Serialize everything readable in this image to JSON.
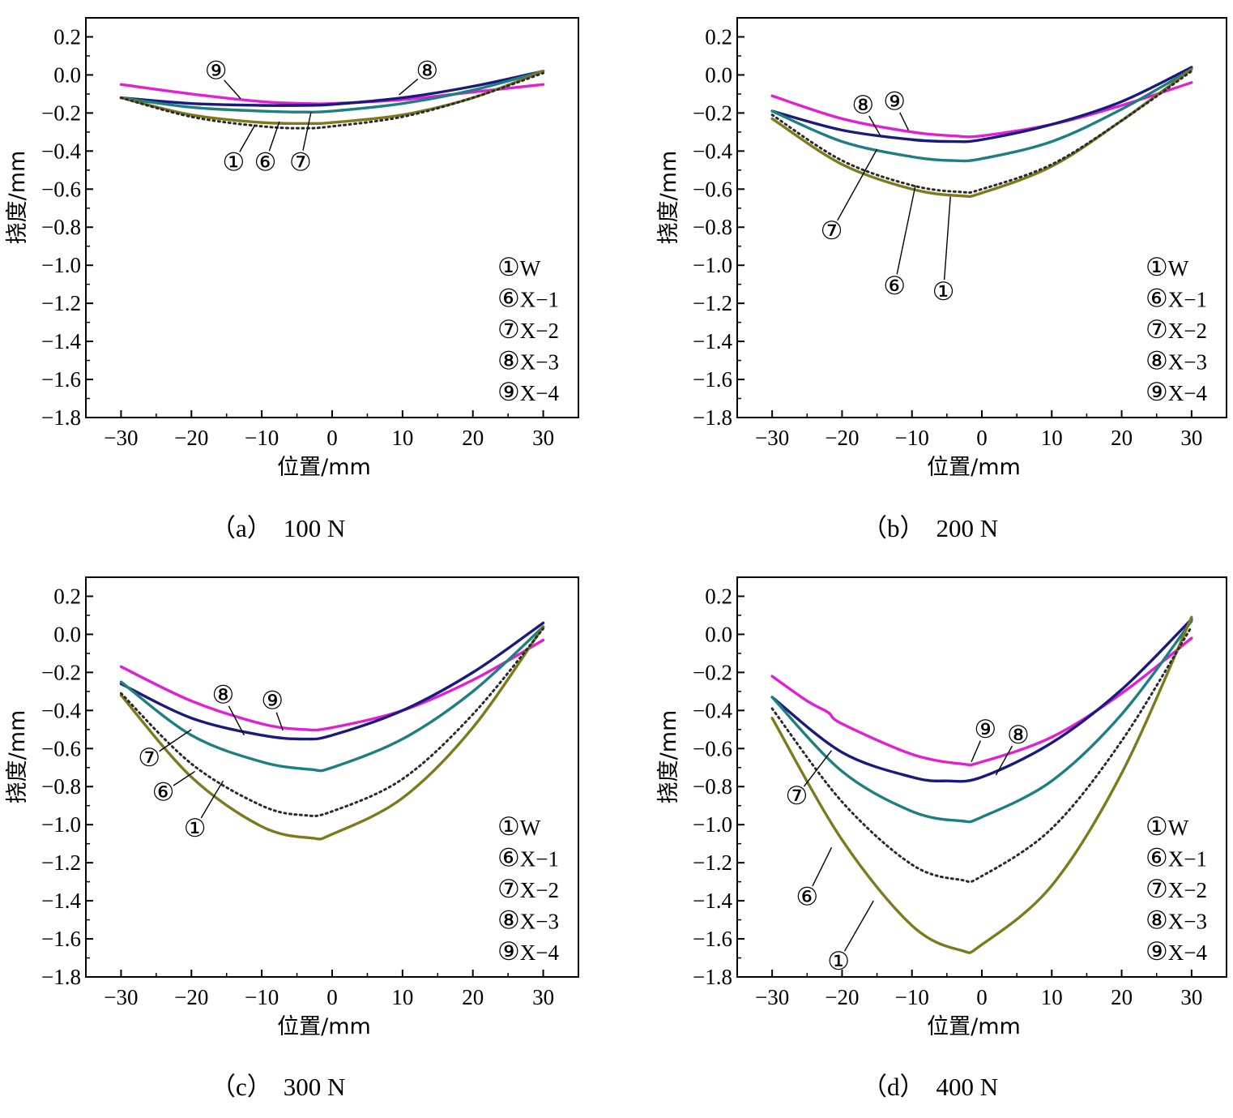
{
  "colors": {
    "W": "#2b2b2b",
    "X-1": "#7d7a1e",
    "X-2": "#1d7f80",
    "X-3": "#1a1a7e",
    "X-4": "#e11fd6"
  },
  "chart_data": [
    {
      "type": "line",
      "caption_label": "（a）",
      "caption_load": "100 N",
      "xlabel": "位置/mm",
      "ylabel": "挠度/mm",
      "xlim": [
        -35,
        35
      ],
      "ylim": [
        -1.8,
        0.3
      ],
      "xticks": [
        -30,
        -20,
        -10,
        0,
        10,
        20,
        30
      ],
      "yticks": [
        0.2,
        0.0,
        -0.2,
        -0.4,
        -0.6,
        -0.8,
        -1.0,
        -1.2,
        -1.4,
        -1.6,
        -1.8
      ],
      "legend_position": "bottom-right",
      "legend": [
        {
          "marker": "①",
          "name": "W"
        },
        {
          "marker": "⑥",
          "name": "X-1"
        },
        {
          "marker": "⑦",
          "name": "X-2"
        },
        {
          "marker": "⑧",
          "name": "X-3"
        },
        {
          "marker": "⑨",
          "name": "X-4"
        }
      ],
      "series": [
        {
          "key": "W",
          "style": "dotted",
          "x": [
            -30,
            -20,
            -10,
            -4,
            0,
            10,
            20,
            30
          ],
          "values": [
            -0.12,
            -0.22,
            -0.27,
            -0.28,
            -0.27,
            -0.22,
            -0.12,
            0.01
          ]
        },
        {
          "key": "X-1",
          "style": "solid",
          "x": [
            -30,
            -20,
            -10,
            -3,
            0,
            10,
            20,
            30
          ],
          "values": [
            -0.12,
            -0.21,
            -0.25,
            -0.255,
            -0.25,
            -0.21,
            -0.12,
            0.02
          ]
        },
        {
          "key": "X-2",
          "style": "solid",
          "x": [
            -30,
            -20,
            -10,
            -4,
            0,
            10,
            20,
            30
          ],
          "values": [
            -0.12,
            -0.17,
            -0.19,
            -0.195,
            -0.19,
            -0.15,
            -0.08,
            0.02
          ]
        },
        {
          "key": "X-3",
          "style": "solid",
          "x": [
            -30,
            -20,
            -10,
            -4,
            0,
            10,
            20,
            30
          ],
          "values": [
            -0.12,
            -0.15,
            -0.16,
            -0.16,
            -0.155,
            -0.12,
            -0.06,
            0.02
          ]
        },
        {
          "key": "X-4",
          "style": "solid",
          "x": [
            -30,
            -20,
            -10,
            -4,
            0,
            10,
            20,
            30
          ],
          "values": [
            -0.05,
            -0.1,
            -0.14,
            -0.15,
            -0.15,
            -0.13,
            -0.09,
            -0.05
          ]
        }
      ],
      "callouts": [
        {
          "marker": "⑨",
          "tx": -16.5,
          "ty": 0.02,
          "px": -13,
          "py": -0.125
        },
        {
          "marker": "⑧",
          "tx": 13.5,
          "ty": 0.02,
          "px": 9.5,
          "py": -0.105
        },
        {
          "marker": "①",
          "tx": -14,
          "ty": -0.46,
          "px": -11,
          "py": -0.265
        },
        {
          "marker": "⑥",
          "tx": -9.5,
          "ty": -0.46,
          "px": -7.5,
          "py": -0.245
        },
        {
          "marker": "⑦",
          "tx": -4.5,
          "ty": -0.46,
          "px": -3,
          "py": -0.195
        }
      ]
    },
    {
      "type": "line",
      "caption_label": "（b）",
      "caption_load": "200 N",
      "xlabel": "位置/mm",
      "ylabel": "挠度/mm",
      "xlim": [
        -35,
        35
      ],
      "ylim": [
        -1.8,
        0.3
      ],
      "xticks": [
        -30,
        -20,
        -10,
        0,
        10,
        20,
        30
      ],
      "yticks": [
        0.2,
        0.0,
        -0.2,
        -0.4,
        -0.6,
        -0.8,
        -1.0,
        -1.2,
        -1.4,
        -1.6,
        -1.8
      ],
      "legend_position": "bottom-right",
      "legend": [
        {
          "marker": "①",
          "name": "W"
        },
        {
          "marker": "⑥",
          "name": "X-1"
        },
        {
          "marker": "⑦",
          "name": "X-2"
        },
        {
          "marker": "⑧",
          "name": "X-3"
        },
        {
          "marker": "⑨",
          "name": "X-4"
        }
      ],
      "series": [
        {
          "key": "W",
          "style": "dotted",
          "x": [
            -30,
            -20,
            -10,
            -3,
            0,
            10,
            20,
            30
          ],
          "values": [
            -0.21,
            -0.45,
            -0.58,
            -0.615,
            -0.6,
            -0.47,
            -0.24,
            0.02
          ]
        },
        {
          "key": "X-1",
          "style": "solid",
          "x": [
            -30,
            -20,
            -10,
            -3,
            0,
            10,
            20,
            30
          ],
          "values": [
            -0.23,
            -0.47,
            -0.6,
            -0.635,
            -0.62,
            -0.48,
            -0.24,
            0.03
          ]
        },
        {
          "key": "X-2",
          "style": "solid",
          "x": [
            -30,
            -20,
            -10,
            -4,
            0,
            10,
            20,
            30
          ],
          "values": [
            -0.19,
            -0.35,
            -0.43,
            -0.45,
            -0.44,
            -0.35,
            -0.18,
            0.03
          ]
        },
        {
          "key": "X-3",
          "style": "solid",
          "x": [
            -30,
            -20,
            -10,
            -4,
            0,
            10,
            20,
            30
          ],
          "values": [
            -0.19,
            -0.29,
            -0.34,
            -0.35,
            -0.34,
            -0.26,
            -0.14,
            0.04
          ]
        },
        {
          "key": "X-4",
          "style": "solid",
          "x": [
            -30,
            -20,
            -10,
            -4,
            0,
            10,
            20,
            30
          ],
          "values": [
            -0.11,
            -0.23,
            -0.3,
            -0.32,
            -0.32,
            -0.26,
            -0.16,
            -0.04
          ]
        }
      ],
      "callouts": [
        {
          "marker": "⑧",
          "tx": -17,
          "ty": -0.16,
          "px": -14.5,
          "py": -0.32
        },
        {
          "marker": "⑨",
          "tx": -12.5,
          "ty": -0.14,
          "px": -10.5,
          "py": -0.29
        },
        {
          "marker": "⑦",
          "tx": -21.5,
          "ty": -0.82,
          "px": -15,
          "py": -0.39
        },
        {
          "marker": "⑥",
          "tx": -12.5,
          "ty": -1.11,
          "px": -9.5,
          "py": -0.58
        },
        {
          "marker": "①",
          "tx": -5.5,
          "ty": -1.14,
          "px": -4.5,
          "py": -0.64
        }
      ]
    },
    {
      "type": "line",
      "caption_label": "（c）",
      "caption_load": "300 N",
      "xlabel": "位置/mm",
      "ylabel": "挠度/mm",
      "xlim": [
        -35,
        35
      ],
      "ylim": [
        -1.8,
        0.3
      ],
      "xticks": [
        -30,
        -20,
        -10,
        0,
        10,
        20,
        30
      ],
      "yticks": [
        0.2,
        0.0,
        -0.2,
        -0.4,
        -0.6,
        -0.8,
        -1.0,
        -1.2,
        -1.4,
        -1.6,
        -1.8
      ],
      "legend_position": "bottom-right",
      "legend": [
        {
          "marker": "①",
          "name": "W"
        },
        {
          "marker": "⑥",
          "name": "X-1"
        },
        {
          "marker": "⑦",
          "name": "X-2"
        },
        {
          "marker": "⑧",
          "name": "X-3"
        },
        {
          "marker": "⑨",
          "name": "X-4"
        }
      ],
      "series": [
        {
          "key": "W",
          "style": "dotted",
          "x": [
            -30,
            -20,
            -10,
            -4,
            0,
            10,
            20,
            30
          ],
          "values": [
            -0.31,
            -0.68,
            -0.9,
            -0.95,
            -0.93,
            -0.76,
            -0.42,
            0.03
          ]
        },
        {
          "key": "X-1",
          "style": "solid",
          "x": [
            -30,
            -20,
            -10,
            -3,
            0,
            10,
            20,
            30
          ],
          "values": [
            -0.32,
            -0.75,
            -1.01,
            -1.07,
            -1.05,
            -0.86,
            -0.49,
            0.04
          ]
        },
        {
          "key": "X-2",
          "style": "solid",
          "x": [
            -30,
            -20,
            -10,
            -3,
            0,
            10,
            20,
            30
          ],
          "values": [
            -0.25,
            -0.53,
            -0.67,
            -0.71,
            -0.7,
            -0.55,
            -0.3,
            0.04
          ]
        },
        {
          "key": "X-3",
          "style": "solid",
          "x": [
            -30,
            -20,
            -10,
            -4,
            0,
            10,
            20,
            30
          ],
          "values": [
            -0.26,
            -0.44,
            -0.53,
            -0.55,
            -0.53,
            -0.4,
            -0.2,
            0.06
          ]
        },
        {
          "key": "X-4",
          "style": "solid",
          "x": [
            -30,
            -20,
            -10,
            -4,
            0,
            10,
            20,
            30
          ],
          "values": [
            -0.17,
            -0.35,
            -0.47,
            -0.5,
            -0.49,
            -0.4,
            -0.24,
            -0.03
          ]
        }
      ],
      "callouts": [
        {
          "marker": "⑧",
          "tx": -15.5,
          "ty": -0.32,
          "px": -12.5,
          "py": -0.53
        },
        {
          "marker": "⑨",
          "tx": -8.5,
          "ty": -0.35,
          "px": -7,
          "py": -0.505
        },
        {
          "marker": "⑦",
          "tx": -26,
          "ty": -0.65,
          "px": -20,
          "py": -0.5
        },
        {
          "marker": "⑥",
          "tx": -24,
          "ty": -0.83,
          "px": -19.5,
          "py": -0.72
        },
        {
          "marker": "①",
          "tx": -19.5,
          "ty": -1.02,
          "px": -15.5,
          "py": -0.77
        }
      ]
    },
    {
      "type": "line",
      "caption_label": "（d）",
      "caption_load": "400 N",
      "xlabel": "位置/mm",
      "ylabel": "挠度/mm",
      "xlim": [
        -35,
        35
      ],
      "ylim": [
        -1.8,
        0.3
      ],
      "xticks": [
        -30,
        -20,
        -10,
        0,
        10,
        20,
        30
      ],
      "yticks": [
        0.2,
        0.0,
        -0.2,
        -0.4,
        -0.6,
        -0.8,
        -1.0,
        -1.2,
        -1.4,
        -1.6,
        -1.8
      ],
      "legend_position": "bottom-right",
      "legend": [
        {
          "marker": "①",
          "name": "W"
        },
        {
          "marker": "⑥",
          "name": "X-1"
        },
        {
          "marker": "⑦",
          "name": "X-2"
        },
        {
          "marker": "⑧",
          "name": "X-3"
        },
        {
          "marker": "⑨",
          "name": "X-4"
        }
      ],
      "series": [
        {
          "key": "W",
          "style": "dotted",
          "x": [
            -30,
            -20,
            -10,
            -3,
            0,
            10,
            20,
            30
          ],
          "values": [
            -0.39,
            -0.88,
            -1.21,
            -1.29,
            -1.27,
            -1.02,
            -0.56,
            0.04
          ]
        },
        {
          "key": "X-1",
          "style": "solid",
          "x": [
            -30,
            -20,
            -10,
            -3,
            0,
            10,
            20,
            30
          ],
          "values": [
            -0.44,
            -1.08,
            -1.53,
            -1.66,
            -1.63,
            -1.32,
            -0.73,
            0.09
          ]
        },
        {
          "key": "X-2",
          "style": "solid",
          "x": [
            -30,
            -20,
            -10,
            -3,
            0,
            10,
            20,
            30
          ],
          "values": [
            -0.33,
            -0.72,
            -0.93,
            -0.98,
            -0.96,
            -0.77,
            -0.42,
            0.07
          ]
        },
        {
          "key": "X-3",
          "style": "solid",
          "x": [
            -30,
            -20,
            -10,
            -5,
            0,
            10,
            20,
            30
          ],
          "values": [
            -0.33,
            -0.62,
            -0.75,
            -0.77,
            -0.75,
            -0.57,
            -0.29,
            0.08
          ]
        },
        {
          "key": "X-4",
          "style": "solid",
          "x": [
            -30,
            -25,
            -22,
            -20,
            -10,
            -3,
            0,
            10,
            20,
            30
          ],
          "values": [
            -0.22,
            -0.35,
            -0.41,
            -0.47,
            -0.63,
            -0.68,
            -0.67,
            -0.54,
            -0.31,
            -0.02
          ]
        }
      ],
      "callouts": [
        {
          "marker": "⑨",
          "tx": 0.5,
          "ty": -0.5,
          "px": -1.5,
          "py": -0.67
        },
        {
          "marker": "⑧",
          "tx": 5.2,
          "ty": -0.53,
          "px": 2,
          "py": -0.74
        },
        {
          "marker": "⑦",
          "tx": -26.5,
          "ty": -0.85,
          "px": -21.5,
          "py": -0.61
        },
        {
          "marker": "⑥",
          "tx": -25,
          "ty": -1.38,
          "px": -21.5,
          "py": -1.12
        },
        {
          "marker": "①",
          "tx": -20.5,
          "ty": -1.72,
          "px": -15.5,
          "py": -1.4
        }
      ]
    }
  ]
}
